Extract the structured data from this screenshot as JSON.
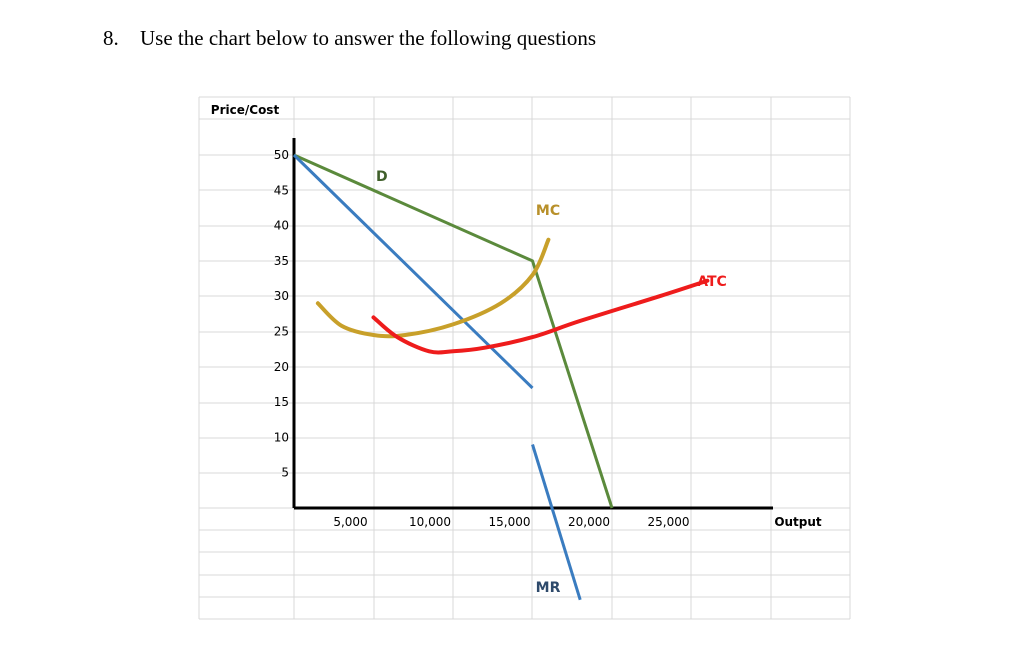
{
  "question": {
    "number": "8.",
    "text": "Use the chart below to answer the following questions"
  },
  "chart_data": {
    "type": "line",
    "ylabel": "Price/Cost",
    "xlabel": "Output",
    "xlim": [
      0,
      30000
    ],
    "ylim": [
      0,
      50
    ],
    "y_ticks": [
      "50",
      "45",
      "40",
      "35",
      "30",
      "25",
      "20",
      "15",
      "10",
      "5"
    ],
    "x_ticks": [
      "5,000",
      "10,000",
      "15,000",
      "20,000",
      "25,000"
    ],
    "grid": true,
    "series": [
      {
        "name": "D",
        "color": "#5B8A3C",
        "points": [
          [
            0,
            50
          ],
          [
            15000,
            35
          ],
          [
            20000,
            0
          ]
        ]
      },
      {
        "name": "MR",
        "color": "#3A7CC0",
        "points": [
          [
            0,
            50
          ],
          [
            15000,
            17
          ],
          [
            15000,
            9
          ],
          [
            18000,
            -13
          ]
        ]
      },
      {
        "name": "MC",
        "color": "#C8A02A",
        "points": [
          [
            1500,
            29
          ],
          [
            3000,
            25.8
          ],
          [
            5000,
            24.5
          ],
          [
            7000,
            24.5
          ],
          [
            10000,
            26
          ],
          [
            13000,
            29
          ],
          [
            15000,
            33
          ],
          [
            16000,
            38
          ]
        ]
      },
      {
        "name": "ATC",
        "color": "#EE1C1C",
        "points": [
          [
            5000,
            27
          ],
          [
            6500,
            24.2
          ],
          [
            8500,
            22.2
          ],
          [
            10000,
            22.2
          ],
          [
            12000,
            22.7
          ],
          [
            15000,
            24.2
          ],
          [
            18000,
            26.5
          ],
          [
            23000,
            30
          ],
          [
            26000,
            32.2
          ]
        ]
      }
    ]
  }
}
